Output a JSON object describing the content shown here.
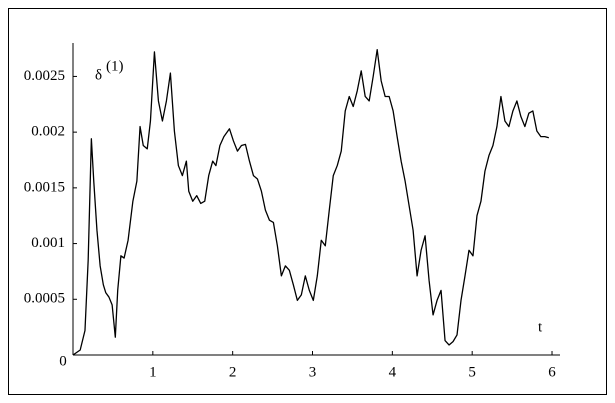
{
  "chart_data": {
    "type": "line",
    "y_label": "δ",
    "y_label_sup": "(1)",
    "x_label": "t",
    "xlim": [
      0,
      6.1
    ],
    "ylim": [
      0,
      0.0028
    ],
    "xticks": [
      0,
      1,
      2,
      3,
      4,
      5,
      6
    ],
    "yticks": [
      0.0005,
      0.001,
      0.0015,
      0.002,
      0.0025
    ],
    "color": "#000000",
    "x": [
      0,
      0.09,
      0.15,
      0.19,
      0.23,
      0.26,
      0.3,
      0.34,
      0.38,
      0.41,
      0.45,
      0.49,
      0.53,
      0.56,
      0.6,
      0.64,
      0.69,
      0.75,
      0.8,
      0.84,
      0.88,
      0.93,
      0.97,
      1.02,
      1.07,
      1.12,
      1.17,
      1.22,
      1.27,
      1.32,
      1.37,
      1.42,
      1.45,
      1.5,
      1.55,
      1.6,
      1.65,
      1.7,
      1.75,
      1.79,
      1.84,
      1.89,
      1.96,
      2.01,
      2.06,
      2.11,
      2.16,
      2.21,
      2.26,
      2.31,
      2.36,
      2.41,
      2.46,
      2.51,
      2.56,
      2.61,
      2.66,
      2.71,
      2.76,
      2.81,
      2.86,
      2.91,
      2.96,
      3.01,
      3.06,
      3.11,
      3.16,
      3.21,
      3.26,
      3.31,
      3.36,
      3.41,
      3.46,
      3.51,
      3.56,
      3.61,
      3.66,
      3.71,
      3.76,
      3.81,
      3.86,
      3.91,
      3.96,
      4.01,
      4.06,
      4.11,
      4.16,
      4.21,
      4.26,
      4.31,
      4.36,
      4.41,
      4.46,
      4.51,
      4.56,
      4.61,
      4.66,
      4.71,
      4.76,
      4.81,
      4.86,
      4.91,
      4.96,
      5.01,
      5.06,
      5.11,
      5.16,
      5.21,
      5.26,
      5.31,
      5.36,
      5.41,
      5.46,
      5.51,
      5.56,
      5.61,
      5.66,
      5.71,
      5.76,
      5.81,
      5.86,
      5.91,
      5.96
    ],
    "values": [
      0,
      4.5e-05,
      0.00022,
      0.00085,
      0.00194,
      0.00156,
      0.00112,
      0.0008,
      0.00063,
      0.00056,
      0.00052,
      0.00045,
      0.00016,
      0.00058,
      0.00089,
      0.00087,
      0.00103,
      0.00138,
      0.00156,
      0.00205,
      0.00188,
      0.00185,
      0.0021,
      0.00272,
      0.00228,
      0.0021,
      0.00228,
      0.00253,
      0.00201,
      0.0017,
      0.00161,
      0.00174,
      0.00147,
      0.00138,
      0.00143,
      0.00136,
      0.00138,
      0.00161,
      0.00174,
      0.0017,
      0.00188,
      0.00196,
      0.00203,
      0.00192,
      0.00183,
      0.00188,
      0.00189,
      0.00174,
      0.00161,
      0.00158,
      0.00147,
      0.0013,
      0.00121,
      0.00119,
      0.00098,
      0.00071,
      0.0008,
      0.00076,
      0.00063,
      0.00049,
      0.00054,
      0.00071,
      0.00058,
      0.00049,
      0.00071,
      0.00103,
      0.00098,
      0.0013,
      0.00161,
      0.0017,
      0.00183,
      0.00219,
      0.00232,
      0.00223,
      0.00237,
      0.00255,
      0.00232,
      0.00228,
      0.0025,
      0.00274,
      0.00246,
      0.00232,
      0.00232,
      0.00219,
      0.00196,
      0.00174,
      0.00156,
      0.00134,
      0.00112,
      0.00071,
      0.00094,
      0.00107,
      0.00067,
      0.00036,
      0.00049,
      0.00058,
      0.00013,
      9e-05,
      0.00012,
      0.00018,
      0.00049,
      0.00071,
      0.00094,
      0.00089,
      0.00125,
      0.00138,
      0.00165,
      0.00179,
      0.00188,
      0.00205,
      0.00232,
      0.0021,
      0.00205,
      0.00219,
      0.00228,
      0.00214,
      0.00205,
      0.00217,
      0.00219,
      0.00201,
      0.00196,
      0.00196,
      0.00195
    ]
  }
}
